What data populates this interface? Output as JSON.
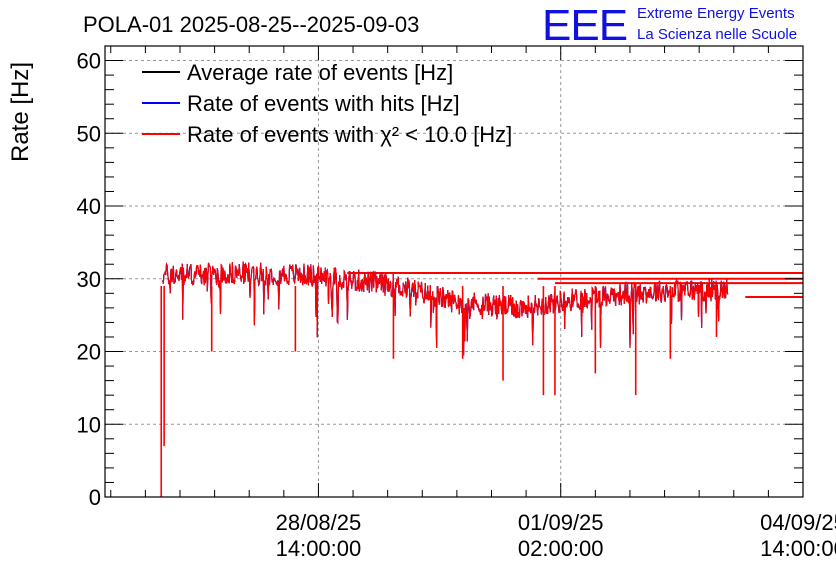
{
  "chart_data": {
    "type": "line",
    "title": "POLA-01 2025-08-25--2025-09-03",
    "ylabel": "Rate [Hz]",
    "xlabel": "",
    "ylim": [
      0,
      62
    ],
    "y_ticks": [
      "0",
      "10",
      "20",
      "30",
      "40",
      "50",
      "60"
    ],
    "x_ticks": [
      {
        "date": "28/08/25",
        "time": "14:00:00",
        "t": "2025-08-28T14:00:00"
      },
      {
        "date": "01/09/25",
        "time": "02:00:00",
        "t": "2025-09-01T02:00:00"
      },
      {
        "date": "04/09/25",
        "time": "14:00:00",
        "t": "2025-09-04T14:00:00"
      }
    ],
    "xlim": [
      "2025-08-25T12:00:00",
      "2025-09-04T14:00:00"
    ],
    "grid": true,
    "legend_position": "top-left",
    "series": [
      {
        "name": "Average rate of events [Hz]",
        "color": "#000000",
        "t": [
          "2025-08-26T08:00:00",
          "2025-08-27T12:00:00",
          "2025-08-28T12:00:00",
          "2025-08-29T18:00:00",
          "2025-08-30T12:00:00",
          "2025-08-31T12:00:00",
          "2025-09-01T12:00:00",
          "2025-09-02T12:00:00",
          "2025-09-03T12:00:00"
        ],
        "values": [
          30.5,
          30.8,
          30.5,
          29.0,
          27.0,
          26.0,
          27.5,
          28.3,
          28.5
        ]
      },
      {
        "name": "Rate of events with hits [Hz]",
        "color": "#0000ff",
        "t": [
          "2025-08-26T08:00:00",
          "2025-08-27T12:00:00",
          "2025-08-28T12:00:00",
          "2025-08-29T18:00:00",
          "2025-08-30T12:00:00",
          "2025-08-31T12:00:00",
          "2025-09-01T12:00:00",
          "2025-09-02T12:00:00",
          "2025-09-03T12:00:00"
        ],
        "values": [
          30.5,
          30.8,
          30.5,
          29.0,
          27.0,
          26.0,
          27.5,
          28.3,
          28.5
        ]
      },
      {
        "name": "Rate of events with χ² < 10.0 [Hz]",
        "color": "#ff0000",
        "t": [
          "2025-08-26T08:00:00",
          "2025-08-27T12:00:00",
          "2025-08-28T12:00:00",
          "2025-08-29T18:00:00",
          "2025-08-30T12:00:00",
          "2025-08-31T12:00:00",
          "2025-09-01T12:00:00",
          "2025-09-02T12:00:00",
          "2025-09-03T12:00:00"
        ],
        "values": [
          30.5,
          30.8,
          30.5,
          29.0,
          27.0,
          26.0,
          27.5,
          28.3,
          28.5
        ]
      }
    ],
    "flat_lines": [
      {
        "y": 30.8,
        "t_start": "2025-08-29T00:00:00",
        "t_end": "2025-09-04T14:00:00"
      },
      {
        "y": 30.0,
        "t_start": "2025-08-31T18:00:00",
        "t_end": "2025-09-04T14:00:00"
      },
      {
        "y": 29.4,
        "t_start": "2025-09-01T00:00:00",
        "t_end": "2025-09-04T14:00:00"
      },
      {
        "y": 27.5,
        "t_start": "2025-09-03T18:00:00",
        "t_end": "2025-09-04T14:00:00"
      }
    ],
    "dips": [
      {
        "t": "2025-08-26T07:30:00",
        "value": 0
      },
      {
        "t": "2025-08-26T08:30:00",
        "value": 7
      },
      {
        "t": "2025-08-27T01:00:00",
        "value": 20
      },
      {
        "t": "2025-08-28T06:00:00",
        "value": 20
      },
      {
        "t": "2025-08-29T16:00:00",
        "value": 19
      },
      {
        "t": "2025-08-30T16:00:00",
        "value": 19
      },
      {
        "t": "2025-08-31T06:00:00",
        "value": 16
      },
      {
        "t": "2025-08-31T20:00:00",
        "value": 14
      },
      {
        "t": "2025-09-01T00:00:00",
        "value": 14
      },
      {
        "t": "2025-09-01T14:00:00",
        "value": 17
      },
      {
        "t": "2025-09-02T04:00:00",
        "value": 14
      },
      {
        "t": "2025-09-02T16:00:00",
        "value": 19
      },
      {
        "t": "2025-09-03T08:00:00",
        "value": 22
      }
    ]
  },
  "logo": {
    "mark": "EEE",
    "line1": "Extreme Energy Events",
    "line2": "La Scienza nelle Scuole"
  }
}
